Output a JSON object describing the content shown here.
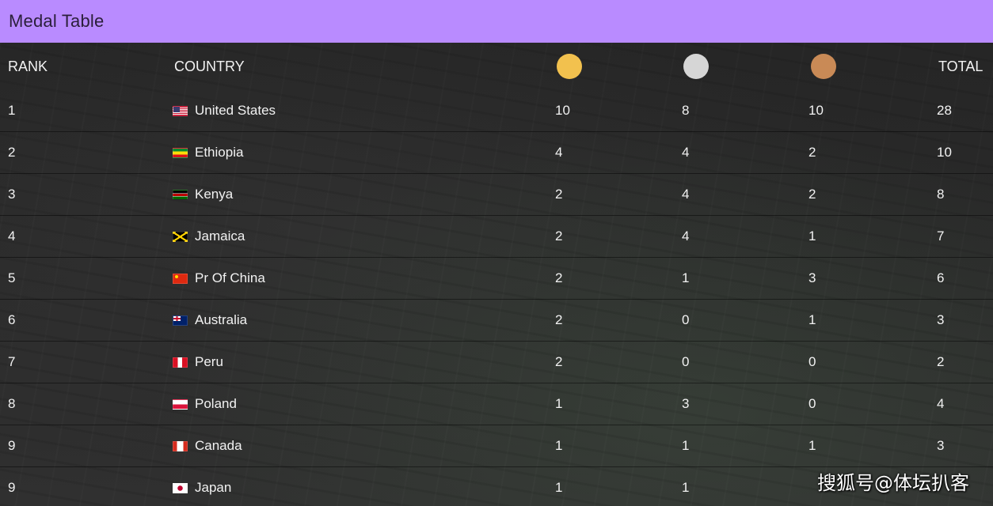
{
  "header": {
    "title": "Medal Table"
  },
  "columns": {
    "rank": "RANK",
    "country": "COUNTRY",
    "total": "TOTAL",
    "gold_icon": "gold-medal-icon",
    "silver_icon": "silver-medal-icon",
    "bronze_icon": "bronze-medal-icon"
  },
  "colors": {
    "header_bg": "#b98bff",
    "gold": "#f2c14e",
    "silver": "#d6d6d6",
    "bronze": "#c98a56"
  },
  "rows": [
    {
      "rank": "1",
      "country": "United States",
      "flag": "us-flag-icon",
      "gold": "10",
      "silver": "8",
      "bronze": "10",
      "total": "28"
    },
    {
      "rank": "2",
      "country": "Ethiopia",
      "flag": "ethiopia-flag-icon",
      "gold": "4",
      "silver": "4",
      "bronze": "2",
      "total": "10"
    },
    {
      "rank": "3",
      "country": "Kenya",
      "flag": "kenya-flag-icon",
      "gold": "2",
      "silver": "4",
      "bronze": "2",
      "total": "8"
    },
    {
      "rank": "4",
      "country": "Jamaica",
      "flag": "jamaica-flag-icon",
      "gold": "2",
      "silver": "4",
      "bronze": "1",
      "total": "7"
    },
    {
      "rank": "5",
      "country": "Pr Of China",
      "flag": "china-flag-icon",
      "gold": "2",
      "silver": "1",
      "bronze": "3",
      "total": "6"
    },
    {
      "rank": "6",
      "country": "Australia",
      "flag": "australia-flag-icon",
      "gold": "2",
      "silver": "0",
      "bronze": "1",
      "total": "3"
    },
    {
      "rank": "7",
      "country": "Peru",
      "flag": "peru-flag-icon",
      "gold": "2",
      "silver": "0",
      "bronze": "0",
      "total": "2"
    },
    {
      "rank": "8",
      "country": "Poland",
      "flag": "poland-flag-icon",
      "gold": "1",
      "silver": "3",
      "bronze": "0",
      "total": "4"
    },
    {
      "rank": "9",
      "country": "Canada",
      "flag": "canada-flag-icon",
      "gold": "1",
      "silver": "1",
      "bronze": "1",
      "total": "3"
    },
    {
      "rank": "9",
      "country": "Japan",
      "flag": "japan-flag-icon",
      "gold": "1",
      "silver": "1",
      "bronze": "",
      "total": ""
    }
  ],
  "watermark": "搜狐号@体坛扒客"
}
